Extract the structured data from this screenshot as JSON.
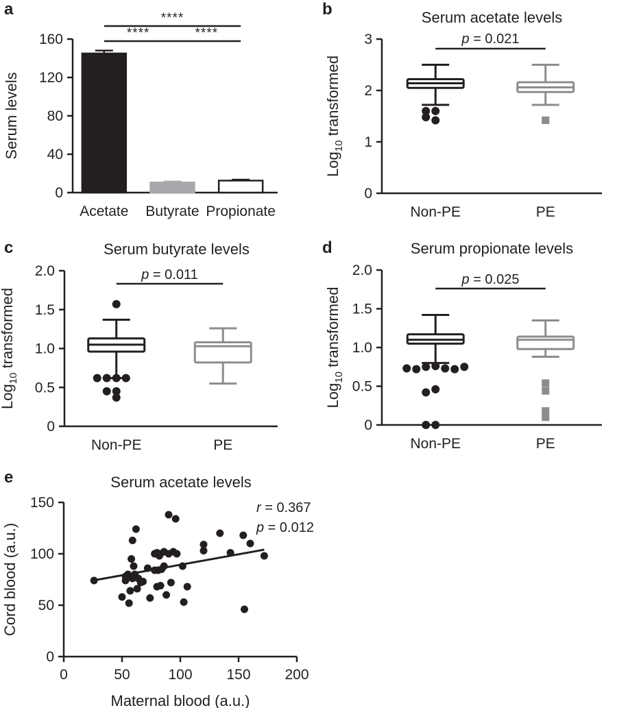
{
  "chart_data": [
    {
      "panel": "a",
      "type": "bar",
      "title": "",
      "ylabel": "Serum levels",
      "xlabel": "",
      "categories": [
        "Acetate",
        "Butyrate",
        "Propionate"
      ],
      "values": [
        145,
        10.5,
        12.5
      ],
      "error": [
        3,
        1,
        1
      ],
      "ylim": [
        0,
        160
      ],
      "yticks": [
        "0",
        "40",
        "80",
        "120",
        "160"
      ],
      "colors": [
        "#231f20",
        "#a7a9ac",
        "#ffffff"
      ],
      "significance": [
        {
          "from": "Acetate",
          "to": "Propionate",
          "label": "****"
        },
        {
          "from": "Acetate",
          "to": "Butyrate",
          "label": "****"
        },
        {
          "from": "Butyrate",
          "to": "Propionate",
          "label": "****"
        }
      ]
    },
    {
      "panel": "b",
      "type": "box",
      "title": "Serum acetate levels",
      "ylabel": "Log10 transformed",
      "ylabel_main": "Log",
      "ylabel_sub": "10",
      "ylabel_rest": " transformed",
      "ylim": [
        0,
        3
      ],
      "yticks": [
        "0",
        "1",
        "2",
        "3"
      ],
      "pvalue_label": "p",
      "pvalue_text": " = 0.021",
      "series": [
        {
          "name": "Non-PE",
          "color": "#231f20",
          "marker": "circle",
          "whisker_low": 1.72,
          "q1": 2.05,
          "median": 2.14,
          "q3": 2.22,
          "whisker_high": 2.5,
          "outliers": [
            1.6,
            1.6,
            1.42,
            1.48
          ]
        },
        {
          "name": "PE",
          "color": "#8c8c8c",
          "marker": "square",
          "whisker_low": 1.72,
          "q1": 1.97,
          "median": 2.06,
          "q3": 2.16,
          "whisker_high": 2.5,
          "outliers": [
            1.42
          ]
        }
      ]
    },
    {
      "panel": "c",
      "type": "box",
      "title": "Serum butyrate levels",
      "ylabel": "Log10 transformed",
      "ylabel_main": "Log",
      "ylabel_sub": "10",
      "ylabel_rest": " transformed",
      "ylim": [
        0,
        2.0
      ],
      "yticks": [
        "0",
        "0.5",
        "1.0",
        "1.5",
        "2.0"
      ],
      "pvalue_label": "p",
      "pvalue_text": " = 0.011",
      "series": [
        {
          "name": "Non-PE",
          "color": "#231f20",
          "marker": "circle",
          "whisker_low": 0.62,
          "q1": 0.96,
          "median": 1.05,
          "q3": 1.13,
          "whisker_high": 1.37,
          "outliers": [
            1.57,
            0.62,
            0.62,
            0.62,
            0.62,
            0.45,
            0.45,
            0.37
          ]
        },
        {
          "name": "PE",
          "color": "#8c8c8c",
          "marker": "square",
          "whisker_low": 0.55,
          "q1": 0.82,
          "median": 1.03,
          "q3": 1.08,
          "whisker_high": 1.26,
          "outliers": []
        }
      ]
    },
    {
      "panel": "d",
      "type": "box",
      "title": "Serum propionate levels",
      "ylabel": "Log10 transformed",
      "ylabel_main": "Log",
      "ylabel_sub": "10",
      "ylabel_rest": " transformed",
      "ylim": [
        0,
        2.0
      ],
      "yticks": [
        "0",
        "0.5",
        "1.0",
        "1.5",
        "2.0"
      ],
      "pvalue_label": "p",
      "pvalue_text": " = 0.025",
      "series": [
        {
          "name": "Non-PE",
          "color": "#231f20",
          "marker": "circle",
          "whisker_low": 0.8,
          "q1": 1.05,
          "median": 1.1,
          "q3": 1.17,
          "whisker_high": 1.42,
          "outliers": [
            0.76,
            0.75,
            0.73,
            0.72,
            0.72,
            0.73,
            0.75,
            0.46,
            0.42,
            0.0,
            0.0
          ]
        },
        {
          "name": "PE",
          "color": "#8c8c8c",
          "marker": "square",
          "whisker_low": 0.88,
          "q1": 0.98,
          "median": 1.1,
          "q3": 1.14,
          "whisker_high": 1.35,
          "outliers": [
            0.54,
            0.44,
            0.18,
            0.1
          ]
        }
      ]
    },
    {
      "panel": "e",
      "type": "scatter",
      "title": "Serum acetate levels",
      "xlabel": "Maternal blood (a.u.)",
      "ylabel": "Cord blood (a.u.)",
      "xlim": [
        0,
        200
      ],
      "ylim": [
        0,
        150
      ],
      "xticks": [
        "0",
        "50",
        "100",
        "150",
        "200"
      ],
      "yticks": [
        "0",
        "50",
        "100",
        "150"
      ],
      "r_label": "r",
      "r_text": " = 0.367",
      "p_label": "p",
      "p_text": " = 0.012",
      "regression": {
        "x": [
          25,
          172
        ],
        "y": [
          74,
          104
        ]
      },
      "points": [
        [
          26,
          74
        ],
        [
          50,
          58
        ],
        [
          53,
          78
        ],
        [
          53,
          74
        ],
        [
          55,
          80
        ],
        [
          56,
          52
        ],
        [
          57,
          64
        ],
        [
          58,
          95
        ],
        [
          59,
          113
        ],
        [
          59,
          76
        ],
        [
          60,
          88
        ],
        [
          61,
          80
        ],
        [
          62,
          124
        ],
        [
          63,
          66
        ],
        [
          64,
          76
        ],
        [
          66,
          72
        ],
        [
          68,
          73
        ],
        [
          72,
          86
        ],
        [
          74,
          57
        ],
        [
          78,
          84
        ],
        [
          78,
          100
        ],
        [
          80,
          101
        ],
        [
          80,
          68
        ],
        [
          81,
          84
        ],
        [
          82,
          98
        ],
        [
          83,
          69
        ],
        [
          83,
          100
        ],
        [
          84,
          85
        ],
        [
          86,
          102
        ],
        [
          86,
          88
        ],
        [
          88,
          60
        ],
        [
          90,
          138
        ],
        [
          90,
          100
        ],
        [
          92,
          72
        ],
        [
          94,
          102
        ],
        [
          96,
          134
        ],
        [
          97,
          100
        ],
        [
          102,
          88
        ],
        [
          103,
          53
        ],
        [
          106,
          68
        ],
        [
          120,
          109
        ],
        [
          120,
          103
        ],
        [
          134,
          120
        ],
        [
          143,
          101
        ],
        [
          154,
          118
        ],
        [
          155,
          46
        ],
        [
          160,
          110
        ],
        [
          172,
          98
        ]
      ]
    }
  ],
  "panel_letters": {
    "a": "a",
    "b": "b",
    "c": "c",
    "d": "d",
    "e": "e"
  }
}
